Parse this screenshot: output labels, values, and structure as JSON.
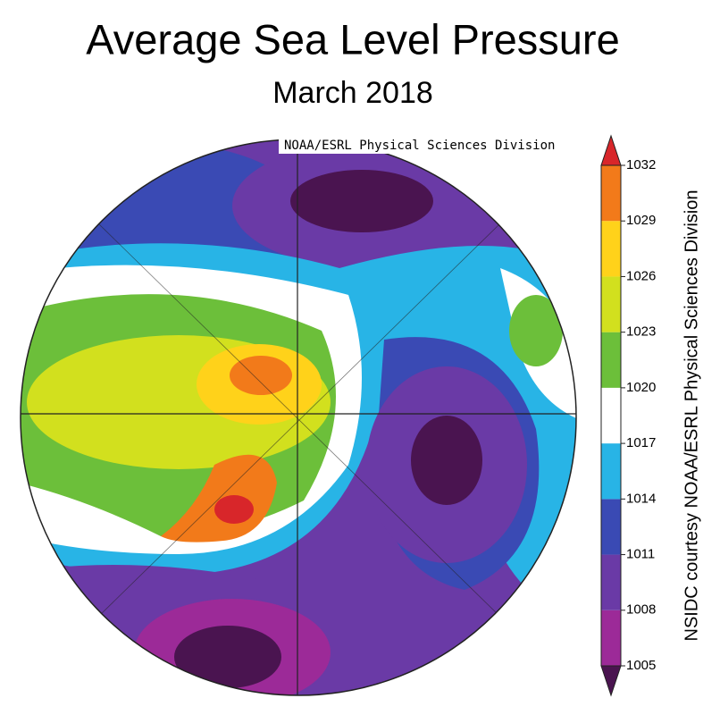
{
  "title": "Average Sea Level Pressure",
  "subtitle": "March 2018",
  "map": {
    "credit": "NOAA/ESRL Physical Sciences Division"
  },
  "colorbar": {
    "ticks": [
      1005,
      1008,
      1011,
      1014,
      1017,
      1020,
      1023,
      1026,
      1029,
      1032
    ],
    "colors": [
      "#4a1450",
      "#9c2a98",
      "#6a3aa6",
      "#3a4ab4",
      "#28b4e6",
      "#ffffff",
      "#6cbf3a",
      "#d2e01e",
      "#ffd21a",
      "#f27a1a",
      "#d8262a"
    ]
  },
  "side_credit": "NSIDC courtesy NOAA/ESRL Physical Sciences Division"
}
